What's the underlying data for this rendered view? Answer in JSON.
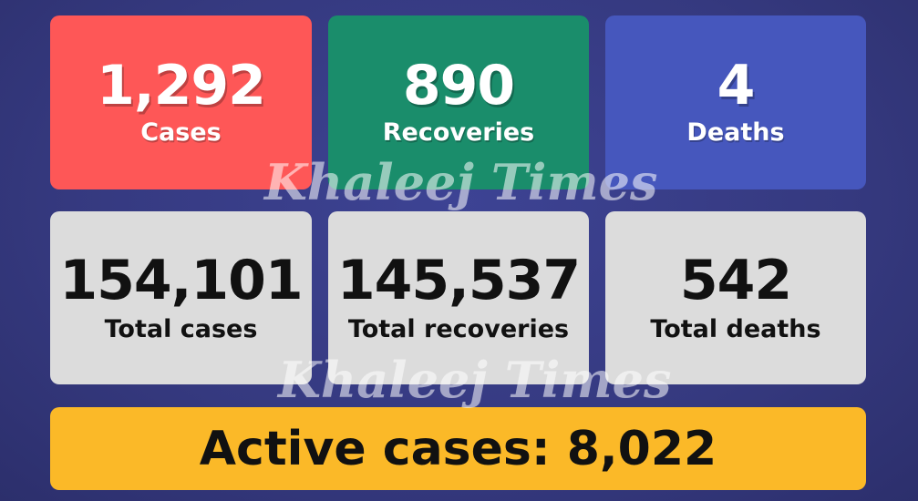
{
  "daily": [
    {
      "value": "1,292",
      "label": "Cases",
      "color": "#fe5757"
    },
    {
      "value": "890",
      "label": "Recoveries",
      "color": "#1a8d6b"
    },
    {
      "value": "4",
      "label": "Deaths",
      "color": "#4657bd"
    }
  ],
  "totals": [
    {
      "value": "154,101",
      "label": "Total cases"
    },
    {
      "value": "145,537",
      "label": "Total recoveries"
    },
    {
      "value": "542",
      "label": "Total deaths"
    }
  ],
  "active": {
    "text": "Active cases: 8,022",
    "color": "#fbb928"
  },
  "watermark": "Khaleej Times"
}
